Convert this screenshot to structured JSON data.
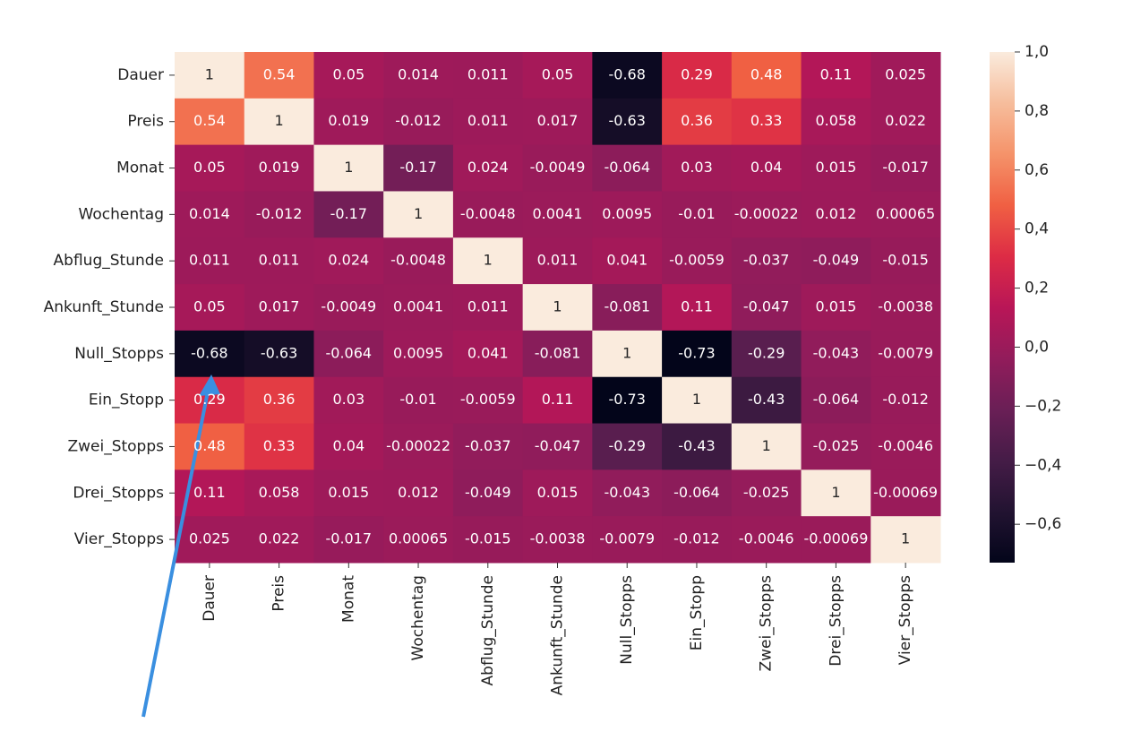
{
  "chart_data": {
    "type": "heatmap",
    "x_categories": [
      "Dauer",
      "Preis",
      "Monat",
      "Wochentag",
      "Abflug_Stunde",
      "Ankunft_Stunde",
      "Null_Stopps",
      "Ein_Stopp",
      "Zwei_Stopps",
      "Drei_Stopps",
      "Vier_Stopps"
    ],
    "y_categories": [
      "Dauer",
      "Preis",
      "Monat",
      "Wochentag",
      "Abflug_Stunde",
      "Ankunft_Stunde",
      "Null_Stopps",
      "Ein_Stopp",
      "Zwei_Stopps",
      "Drei_Stopps",
      "Vier_Stopps"
    ],
    "values": [
      [
        1,
        0.54,
        0.05,
        0.014,
        0.011,
        0.05,
        -0.68,
        0.29,
        0.48,
        0.11,
        0.025
      ],
      [
        0.54,
        1,
        0.019,
        -0.012,
        0.011,
        0.017,
        -0.63,
        0.36,
        0.33,
        0.058,
        0.022
      ],
      [
        0.05,
        0.019,
        1,
        -0.17,
        0.024,
        -0.0049,
        -0.064,
        0.03,
        0.04,
        0.015,
        -0.017
      ],
      [
        0.014,
        -0.012,
        -0.17,
        1,
        -0.0048,
        0.0041,
        0.0095,
        -0.01,
        -0.00022,
        0.012,
        0.00065
      ],
      [
        0.011,
        0.011,
        0.024,
        -0.0048,
        1,
        0.011,
        0.041,
        -0.0059,
        -0.037,
        -0.049,
        -0.015
      ],
      [
        0.05,
        0.017,
        -0.0049,
        0.0041,
        0.011,
        1,
        -0.081,
        0.11,
        -0.047,
        0.015,
        -0.0038
      ],
      [
        -0.68,
        -0.63,
        -0.064,
        0.0095,
        0.041,
        -0.081,
        1,
        -0.73,
        -0.29,
        -0.043,
        -0.0079
      ],
      [
        0.29,
        0.36,
        0.03,
        -0.01,
        -0.0059,
        0.11,
        -0.73,
        1,
        -0.43,
        -0.064,
        -0.012
      ],
      [
        0.48,
        0.33,
        0.04,
        -0.00022,
        -0.037,
        -0.047,
        -0.29,
        -0.43,
        1,
        -0.025,
        -0.0046
      ],
      [
        0.11,
        0.058,
        0.015,
        0.012,
        -0.049,
        0.015,
        -0.043,
        -0.064,
        -0.025,
        1,
        -0.00069
      ],
      [
        0.025,
        0.022,
        -0.017,
        0.00065,
        -0.015,
        -0.0038,
        -0.0079,
        -0.012,
        -0.0046,
        -0.00069,
        1
      ]
    ],
    "zlim": [
      -0.73,
      1
    ],
    "zticks": [
      {
        "value": 1,
        "label": "1,0"
      },
      {
        "value": 0.8,
        "label": "0,8"
      },
      {
        "value": 0.6,
        "label": "0,6"
      },
      {
        "value": 0.4,
        "label": "0,4"
      },
      {
        "value": 0.2,
        "label": "0,2"
      },
      {
        "value": 0,
        "label": "0,0"
      },
      {
        "value": -0.2,
        "label": "−0,2"
      },
      {
        "value": -0.4,
        "label": "−0,4"
      },
      {
        "value": -0.6,
        "label": "−0,6"
      }
    ],
    "colormap": [
      "#03051a",
      "#221331",
      "#451c47",
      "#6a1f56",
      "#921c5b",
      "#b91657",
      "#dd2c45",
      "#f06043",
      "#f5936a",
      "#f6bd9c",
      "#faebdd"
    ]
  }
}
